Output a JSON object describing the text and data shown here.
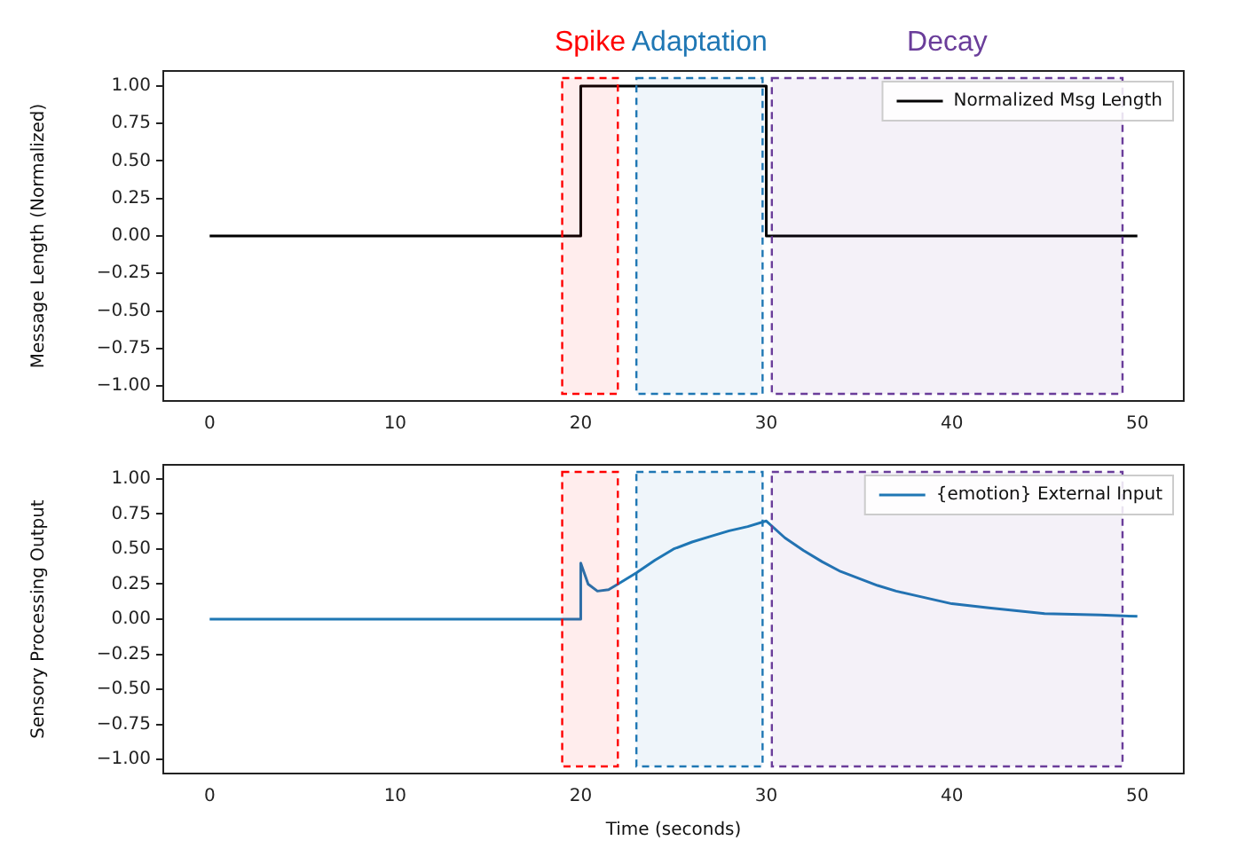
{
  "chart_data": [
    {
      "type": "line",
      "ylabel": "Message Length (Normalized)",
      "x": [
        0,
        20,
        20,
        30,
        30,
        50
      ],
      "xlim": [
        -2.5,
        52.5
      ],
      "xticks": [
        0,
        10,
        20,
        30,
        40,
        50
      ],
      "ylim": [
        -1.1,
        1.1
      ],
      "yticks": [
        {
          "value": -1,
          "label": "−1.00"
        },
        {
          "value": -0.75,
          "label": "−0.75"
        },
        {
          "value": -0.5,
          "label": "−0.50"
        },
        {
          "value": -0.25,
          "label": "−0.25"
        },
        {
          "value": 0,
          "label": "0.00"
        },
        {
          "value": 0.25,
          "label": "0.25"
        },
        {
          "value": 0.5,
          "label": "0.50"
        },
        {
          "value": 0.75,
          "label": "0.75"
        },
        {
          "value": 1,
          "label": "1.00"
        }
      ],
      "grid": false,
      "legend": "top right",
      "series": [
        {
          "name": "Normalized Msg Length",
          "color": "#000000",
          "values": [
            0,
            0,
            1,
            1,
            0,
            0
          ]
        }
      ],
      "bands": [
        {
          "axis": "x",
          "from": 19,
          "to": 22,
          "label": "Spike",
          "color": "#ff0000"
        },
        {
          "axis": "x",
          "from": 23,
          "to": 29.8,
          "label": "Adaptation",
          "color": "#1f77b4"
        },
        {
          "axis": "x",
          "from": 30.3,
          "to": 49.2,
          "label": "Decay",
          "color": "#6a3d9a"
        }
      ]
    },
    {
      "type": "line",
      "ylabel": "Sensory Processing Output",
      "xlabel": "Time (seconds)",
      "x": [
        0,
        20,
        20,
        20.4,
        20.9,
        21.5,
        22,
        23,
        24,
        25,
        26,
        27,
        28,
        29,
        30,
        31,
        32,
        33,
        34,
        35,
        36,
        37,
        38,
        40,
        42,
        45,
        48,
        50
      ],
      "xlim": [
        -2.5,
        52.5
      ],
      "xticks": [
        0,
        10,
        20,
        30,
        40,
        50
      ],
      "ylim": [
        -1.1,
        1.1
      ],
      "yticks": [
        {
          "value": -1,
          "label": "−1.00"
        },
        {
          "value": -0.75,
          "label": "−0.75"
        },
        {
          "value": -0.5,
          "label": "−0.50"
        },
        {
          "value": -0.25,
          "label": "−0.25"
        },
        {
          "value": 0,
          "label": "0.00"
        },
        {
          "value": 0.25,
          "label": "0.25"
        },
        {
          "value": 0.5,
          "label": "0.50"
        },
        {
          "value": 0.75,
          "label": "0.75"
        },
        {
          "value": 1,
          "label": "1.00"
        }
      ],
      "grid": false,
      "legend": "top right",
      "series": [
        {
          "name": "{emotion} External Input",
          "color": "#1f77b4",
          "values": [
            0,
            0,
            0.4,
            0.25,
            0.2,
            0.21,
            0.25,
            0.33,
            0.42,
            0.5,
            0.55,
            0.59,
            0.63,
            0.66,
            0.7,
            0.58,
            0.49,
            0.41,
            0.34,
            0.29,
            0.24,
            0.2,
            0.17,
            0.11,
            0.08,
            0.04,
            0.03,
            0.02
          ]
        }
      ],
      "bands": [
        {
          "axis": "x",
          "from": 19,
          "to": 22,
          "color": "#ff0000"
        },
        {
          "axis": "x",
          "from": 23,
          "to": 29.8,
          "color": "#1f77b4"
        },
        {
          "axis": "x",
          "from": 30.3,
          "to": 49.2,
          "color": "#6a3d9a"
        }
      ]
    }
  ]
}
